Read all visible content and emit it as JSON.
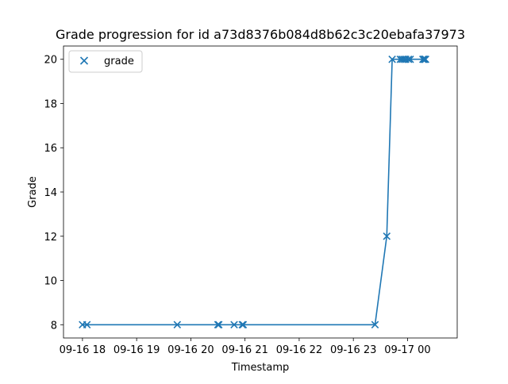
{
  "chart_data": {
    "type": "line",
    "title": "Grade progression for id a73d8376b084d8b62c3c20ebafa37973",
    "xlabel": "Timestamp",
    "ylabel": "Grade",
    "x_ticks": [
      "09-16 18",
      "09-16 19",
      "09-16 20",
      "09-16 21",
      "09-16 22",
      "09-16 23",
      "09-17 00"
    ],
    "y_ticks": [
      "8",
      "10",
      "12",
      "14",
      "16",
      "18",
      "20"
    ],
    "xlim": [
      "09-16 17:39",
      "09-17 00:55"
    ],
    "ylim": [
      7.4,
      20.6
    ],
    "series": [
      {
        "name": "grade",
        "color": "#1f77b4",
        "marker": "x",
        "points": [
          {
            "x": "09-16 18:00",
            "y": 8
          },
          {
            "x": "09-16 18:05",
            "y": 8
          },
          {
            "x": "09-16 19:45",
            "y": 8
          },
          {
            "x": "09-16 20:30",
            "y": 8
          },
          {
            "x": "09-16 20:31",
            "y": 8
          },
          {
            "x": "09-16 20:48",
            "y": 8
          },
          {
            "x": "09-16 20:57",
            "y": 8
          },
          {
            "x": "09-16 20:58",
            "y": 8
          },
          {
            "x": "09-16 23:24",
            "y": 8
          },
          {
            "x": "09-16 23:37",
            "y": 12
          },
          {
            "x": "09-16 23:43",
            "y": 20
          },
          {
            "x": "09-16 23:52",
            "y": 20
          },
          {
            "x": "09-16 23:54",
            "y": 20
          },
          {
            "x": "09-16 23:56",
            "y": 20
          },
          {
            "x": "09-16 23:58",
            "y": 20
          },
          {
            "x": "09-17 00:01",
            "y": 20
          },
          {
            "x": "09-17 00:03",
            "y": 20
          },
          {
            "x": "09-17 00:17",
            "y": 20
          },
          {
            "x": "09-17 00:18",
            "y": 20
          },
          {
            "x": "09-17 00:19",
            "y": 20
          },
          {
            "x": "09-17 00:20",
            "y": 20
          }
        ]
      }
    ],
    "legend": {
      "position": "top-left",
      "entries": [
        "grade"
      ]
    },
    "grid": false
  }
}
